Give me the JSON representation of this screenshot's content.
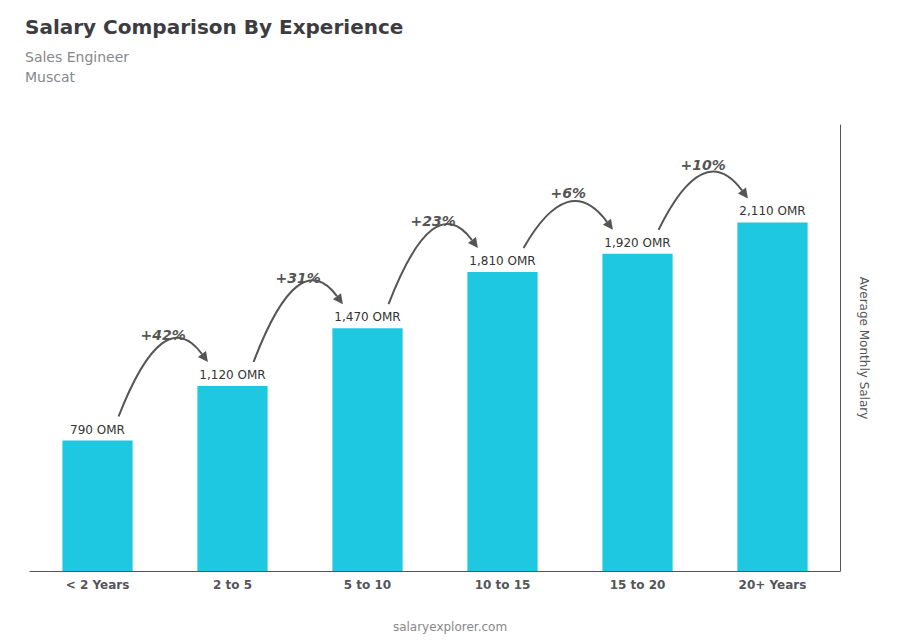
{
  "chart_data": {
    "type": "bar",
    "title": "Salary Comparison By Experience",
    "subtitle": [
      "Sales Engineer",
      "Muscat"
    ],
    "ylabel": "Average Monthly Salary",
    "categories": [
      "< 2 Years",
      "2 to 5",
      "5 to 10",
      "10 to 15",
      "15 to 20",
      "20+ Years"
    ],
    "values": [
      790,
      1120,
      1470,
      1810,
      1920,
      2110
    ],
    "value_labels": [
      "790 OMR",
      "1,120 OMR",
      "1,470 OMR",
      "1,810 OMR",
      "1,920 OMR",
      "2,110 OMR"
    ],
    "data_labels": true,
    "color": "#1ec8e0",
    "ylim": [
      0,
      2700
    ],
    "grid": false,
    "tick_labels": "x",
    "annotations": [
      {
        "text": "+42%",
        "from": "< 2 Years",
        "to": "2 to 5"
      },
      {
        "text": "+31%",
        "from": "2 to 5",
        "to": "5 to 10"
      },
      {
        "text": "+23%",
        "from": "5 to 10",
        "to": "10 to 15"
      },
      {
        "text": "+6%",
        "from": "10 to 15",
        "to": "15 to 20"
      },
      {
        "text": "+10%",
        "from": "15 to 20",
        "to": "20+ Years"
      },
      {
        "text": "salaryexplorer.com"
      }
    ]
  }
}
